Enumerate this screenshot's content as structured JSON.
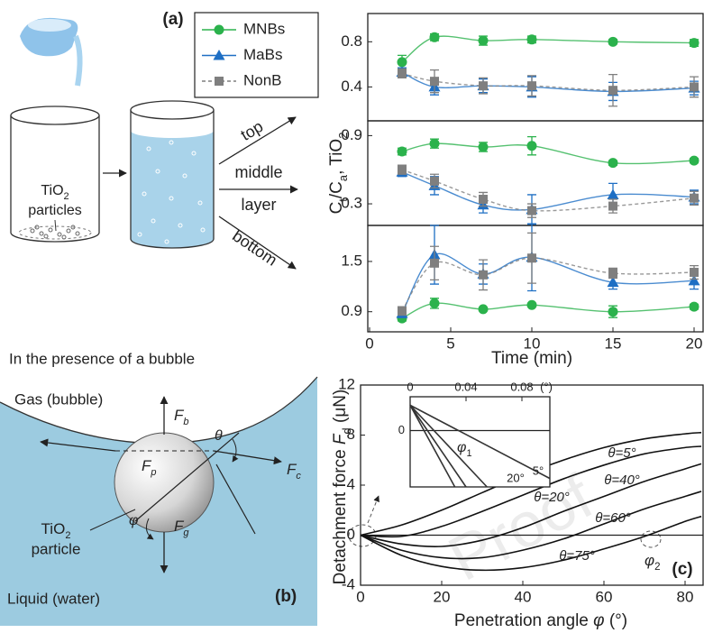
{
  "panel_a": {
    "label": "(a)",
    "particles": [
      "TiO",
      "2",
      "particles"
    ],
    "arrows": [
      "top",
      "middle",
      "layer",
      "bottom"
    ]
  },
  "panel_b": {
    "heading": "In the presence of a bubble",
    "gas": "Gas (bubble)",
    "liquid": "Liquid (water)",
    "particle": [
      "TiO",
      "2",
      "particle"
    ],
    "forces": [
      [
        "F",
        "b"
      ],
      [
        "F",
        "c"
      ],
      [
        "F",
        "p"
      ],
      [
        "F",
        "g"
      ]
    ],
    "theta": "θ",
    "phi": "φ",
    "label": "(b)"
  },
  "watermark": "Proof",
  "chart_data": [
    {
      "type": "line",
      "smooth": true,
      "legend": "left-outside",
      "x": [
        2,
        4,
        7,
        10,
        15,
        20
      ],
      "xlim": [
        0,
        20
      ],
      "ylim": [
        0.1,
        1.05
      ],
      "yticks": [
        0.4,
        0.8
      ],
      "series": [
        {
          "name": "MNBs",
          "color": "#2bb24c",
          "marker": "circle",
          "values": [
            0.62,
            0.84,
            0.81,
            0.82,
            0.8,
            0.79
          ],
          "errors": [
            0.06,
            0.03,
            0.04,
            0.03,
            0.02,
            0.03
          ]
        },
        {
          "name": "MaBs",
          "color": "#1e6fc4",
          "marker": "triangle",
          "values": [
            0.53,
            0.4,
            0.41,
            0.4,
            0.36,
            0.39
          ],
          "errors": [
            0.04,
            0.07,
            0.06,
            0.09,
            0.08,
            0.06
          ]
        },
        {
          "name": "NonB",
          "color": "#7f7f7f",
          "marker": "square",
          "dash": true,
          "values": [
            0.52,
            0.45,
            0.41,
            0.41,
            0.37,
            0.4
          ],
          "errors": [
            0.04,
            0.1,
            0.07,
            0.09,
            0.14,
            0.09
          ]
        }
      ]
    },
    {
      "type": "line",
      "smooth": true,
      "y_label": [
        "C",
        "t",
        "/C",
        "a",
        ", TiO",
        "2"
      ],
      "x": [
        2,
        4,
        7,
        10,
        15,
        20
      ],
      "xlim": [
        0,
        20
      ],
      "ylim": [
        0.11,
        1.03
      ],
      "yticks": [
        0.3,
        0.9
      ],
      "series": [
        {
          "name": "MNBs",
          "color": "#2bb24c",
          "marker": "circle",
          "values": [
            0.76,
            0.83,
            0.8,
            0.81,
            0.66,
            0.68
          ],
          "errors": [
            0.03,
            0.04,
            0.04,
            0.08,
            0.02,
            0.02
          ]
        },
        {
          "name": "MaBs",
          "color": "#1e6fc4",
          "marker": "triangle",
          "values": [
            0.58,
            0.46,
            0.29,
            0.25,
            0.38,
            0.36
          ],
          "errors": [
            0.04,
            0.08,
            0.07,
            0.13,
            0.1,
            0.06
          ]
        },
        {
          "name": "NonB",
          "color": "#7f7f7f",
          "marker": "square",
          "dash": true,
          "values": [
            0.6,
            0.5,
            0.34,
            0.24,
            0.28,
            0.35
          ],
          "errors": [
            0.04,
            0.06,
            0.06,
            0.06,
            0.06,
            0.06
          ]
        }
      ]
    },
    {
      "type": "line",
      "smooth": true,
      "x_label": "Time (min)",
      "x": [
        2,
        4,
        7,
        10,
        15,
        20
      ],
      "xlim": [
        0,
        20
      ],
      "xticks": [
        0,
        5,
        10,
        15,
        20
      ],
      "ylim": [
        0.66,
        1.93
      ],
      "yticks": [
        0.9,
        1.5
      ],
      "series": [
        {
          "name": "MNBs",
          "color": "#2bb24c",
          "marker": "circle",
          "values": [
            0.82,
            1.0,
            0.93,
            0.98,
            0.9,
            0.96
          ],
          "errors": [
            0.03,
            0.06,
            0.02,
            0.02,
            0.07,
            0.03
          ]
        },
        {
          "name": "MaBs",
          "color": "#1e6fc4",
          "marker": "triangle",
          "values": [
            0.88,
            1.58,
            1.35,
            1.55,
            1.25,
            1.27
          ],
          "errors": [
            0.05,
            0.35,
            0.12,
            0.4,
            0.08,
            0.1
          ]
        },
        {
          "name": "NonB",
          "color": "#7f7f7f",
          "marker": "square",
          "dash": true,
          "values": [
            0.91,
            1.48,
            1.34,
            1.54,
            1.36,
            1.37
          ],
          "errors": [
            0.05,
            0.2,
            0.18,
            0.3,
            0.06,
            0.08
          ]
        }
      ]
    },
    {
      "type": "line",
      "smooth": true,
      "label": "(c)",
      "zero_line": true,
      "x_label": [
        "Penetration angle ",
        "φ",
        " (°)"
      ],
      "y_label": [
        "Detachment force ",
        "F",
        "d",
        " (μN)"
      ],
      "annotations": [
        [
          "φ",
          "2"
        ]
      ],
      "x": [
        0,
        10,
        20,
        30,
        40,
        50,
        60,
        70,
        80,
        84
      ],
      "xlim": [
        0,
        84
      ],
      "xticks": [
        0,
        20,
        40,
        60,
        80
      ],
      "ylim": [
        -4,
        12
      ],
      "yticks": [
        -4,
        0,
        4,
        8,
        12
      ],
      "series": [
        {
          "name": "θ=5°",
          "color": "#111111",
          "values": [
            0,
            0.8,
            2.0,
            3.4,
            4.8,
            6.0,
            7.0,
            7.7,
            8.1,
            8.2
          ]
        },
        {
          "name": "θ=20°",
          "color": "#111111",
          "values": [
            0,
            -0.1,
            0.7,
            1.9,
            3.2,
            4.5,
            5.6,
            6.5,
            7.0,
            7.1
          ]
        },
        {
          "name": "θ=40°",
          "color": "#111111",
          "values": [
            0,
            -0.7,
            -0.9,
            -0.4,
            0.6,
            1.9,
            3.1,
            4.3,
            5.3,
            5.7
          ]
        },
        {
          "name": "θ=60°",
          "color": "#111111",
          "values": [
            0,
            -1.2,
            -1.8,
            -1.8,
            -1.2,
            -0.3,
            0.9,
            2.1,
            3.1,
            3.5
          ]
        },
        {
          "name": "θ=75°",
          "color": "#111111",
          "values": [
            0,
            -1.6,
            -2.5,
            -2.8,
            -2.6,
            -2.0,
            -1.1,
            -0.1,
            1.1,
            1.5
          ]
        }
      ]
    },
    {
      "type": "line",
      "xaxis_position": "top",
      "x_unit": "(°)",
      "zero_line": true,
      "annotations": [
        [
          "φ",
          "1"
        ]
      ],
      "xlim": [
        0,
        0.1
      ],
      "xticks": [
        0,
        0.04,
        0.08
      ],
      "ylim": [
        -1,
        0.6
      ],
      "yticks": [
        0
      ],
      "series": [
        {
          "name": "5°",
          "color": "#333333",
          "x": [
            0,
            0.1
          ],
          "values": [
            0.45,
            -0.85
          ]
        },
        {
          "name": "20°",
          "color": "#333333",
          "x": [
            0,
            0.055
          ],
          "values": [
            0.45,
            -1
          ]
        },
        {
          "name": null,
          "color": "#333333",
          "x": [
            0,
            0.04
          ],
          "values": [
            0.45,
            -1
          ]
        },
        {
          "name": null,
          "color": "#333333",
          "x": [
            0,
            0.032
          ],
          "values": [
            0.45,
            -1
          ]
        }
      ]
    }
  ]
}
